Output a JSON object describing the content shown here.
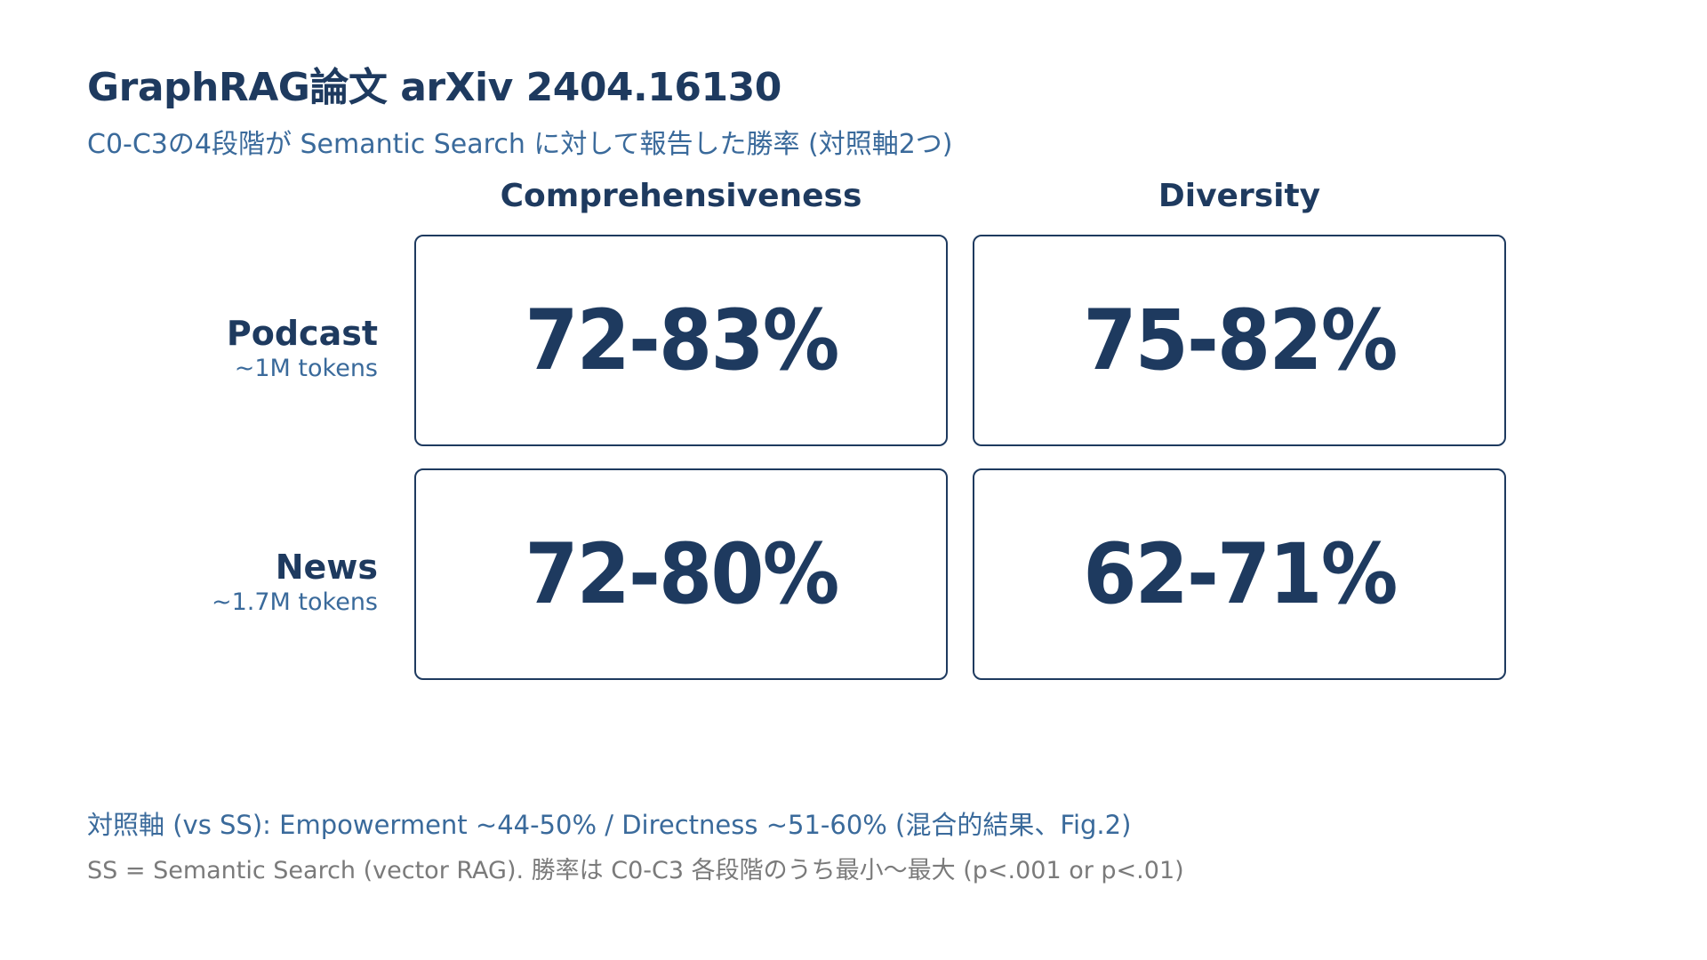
{
  "header": {
    "title": "GraphRAG論文 arXiv 2404.16130",
    "subtitle": "C0-C3の4段階が Semantic Search に対して報告した勝率 (対照軸2つ)"
  },
  "chart_data": {
    "type": "table",
    "columns": [
      "Comprehensiveness",
      "Diversity"
    ],
    "rows": [
      {
        "name": "Podcast",
        "sub": "~1M tokens",
        "values": [
          "72-83%",
          "75-82%"
        ]
      },
      {
        "name": "News",
        "sub": "~1.7M tokens",
        "values": [
          "72-80%",
          "62-71%"
        ]
      }
    ]
  },
  "notes": {
    "control": "対照軸 (vs SS): Empowerment ~44-50% / Directness ~51-60% (混合的結果、Fig.2)",
    "footnote": "SS = Semantic Search (vector RAG). 勝率は C0-C3 各段階のうち最小〜最大 (p<.001 or p<.01)"
  },
  "colors": {
    "primary": "#1e3a5f",
    "secondary": "#3a6a9b",
    "muted": "#7a7a7a"
  }
}
